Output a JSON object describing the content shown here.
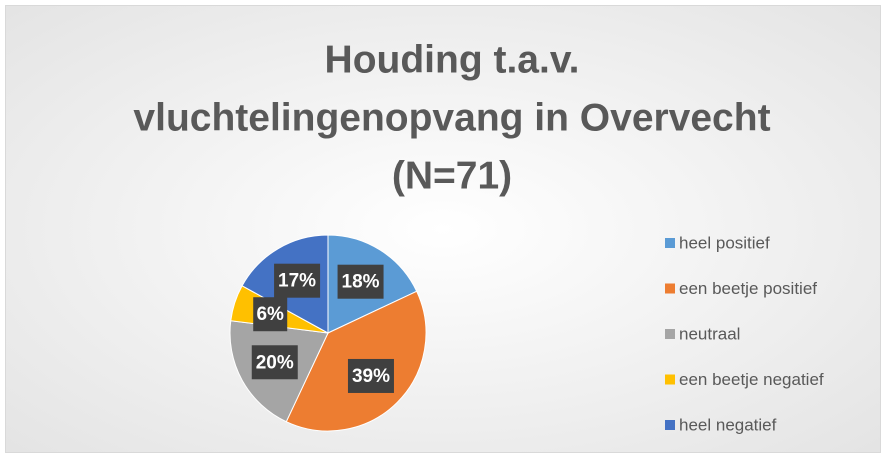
{
  "chart_data": {
    "type": "pie",
    "title": [
      "Houding t.a.v.",
      "vluchtelingenopvang in Overvecht",
      "(N=71)"
    ],
    "categories": [
      "heel positief",
      "een beetje positief",
      "neutraal",
      "een beetje negatief",
      "heel negatief"
    ],
    "values": [
      18,
      39,
      20,
      6,
      17
    ],
    "value_labels": [
      "18%",
      "39%",
      "20%",
      "6%",
      "17%"
    ],
    "colors": [
      "#5b9bd5",
      "#ed7d31",
      "#a5a5a5",
      "#ffc000",
      "#4472c4"
    ],
    "legend": "right"
  }
}
